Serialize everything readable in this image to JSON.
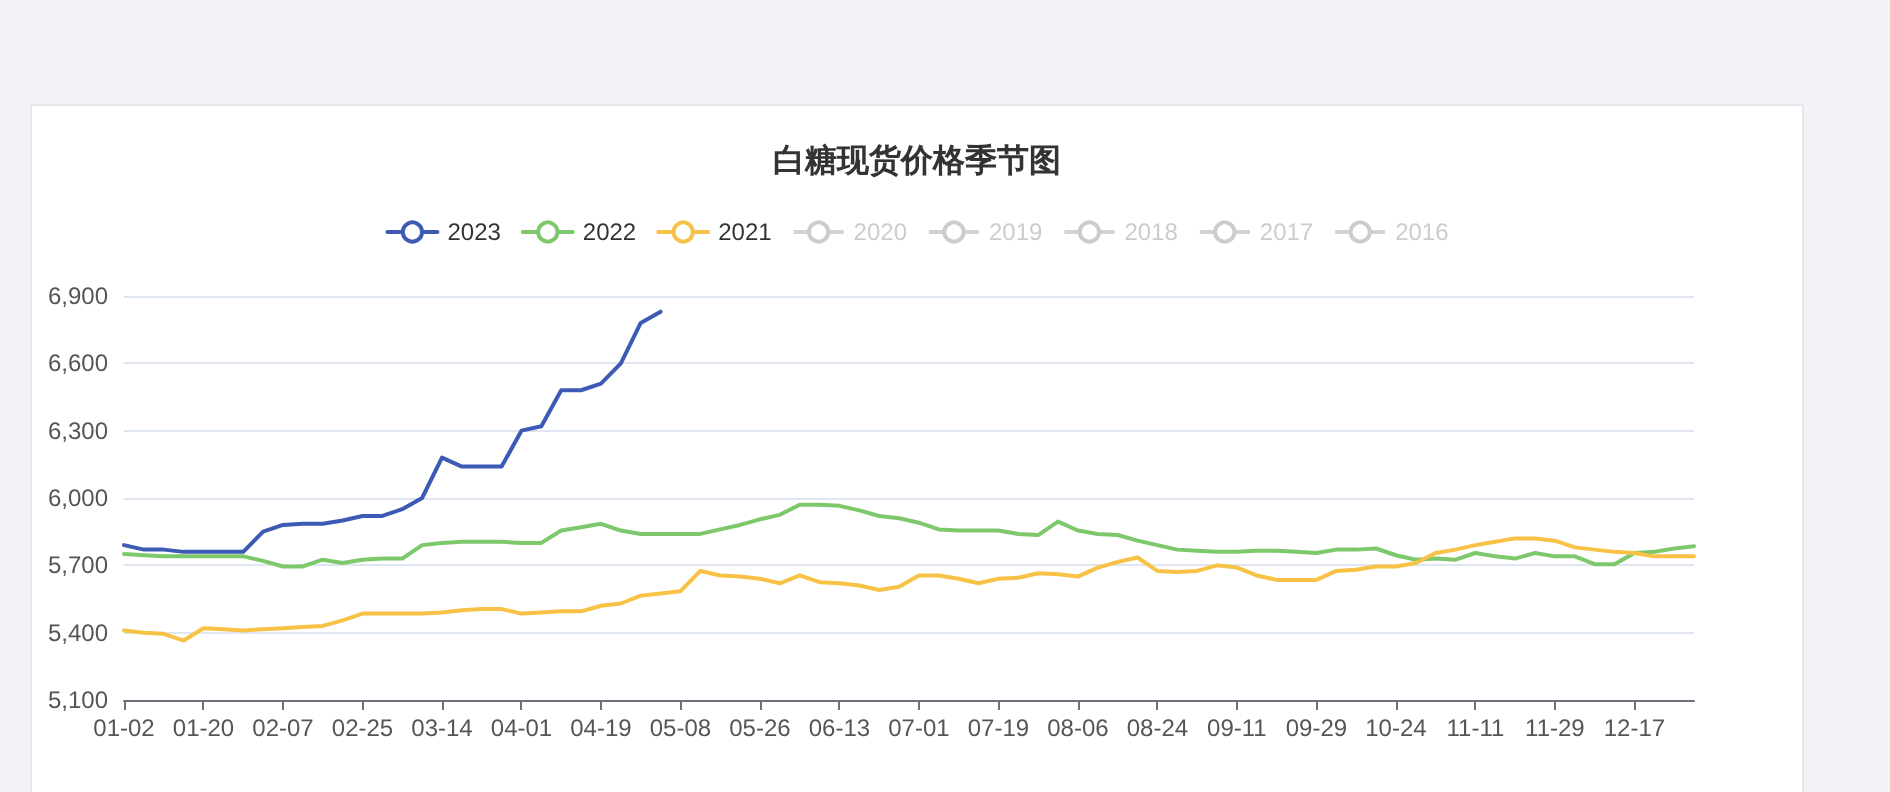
{
  "chart_data": {
    "type": "line",
    "title": "白糖现货价格季节图",
    "categories": [
      "01-02",
      null,
      null,
      null,
      "01-20",
      null,
      null,
      null,
      "02-07",
      null,
      null,
      null,
      "02-25",
      null,
      null,
      null,
      "03-14",
      null,
      null,
      null,
      "04-01",
      null,
      null,
      null,
      "04-19",
      null,
      null,
      null,
      "05-08",
      null,
      null,
      null,
      "05-26",
      null,
      null,
      null,
      "06-13",
      null,
      null,
      null,
      "07-01",
      null,
      null,
      null,
      "07-19",
      null,
      null,
      null,
      "08-06",
      null,
      null,
      null,
      "08-24",
      null,
      null,
      null,
      "09-11",
      null,
      null,
      null,
      "09-29",
      null,
      null,
      null,
      "10-24",
      null,
      null,
      null,
      "11-11",
      null,
      null,
      null,
      "11-29",
      null,
      null,
      null,
      "12-17",
      null,
      null,
      null
    ],
    "series": [
      {
        "name": "2023",
        "color": "#3d5bb5",
        "values": [
          5790,
          5770,
          5770,
          5760,
          5760,
          5760,
          5760,
          5850,
          5880,
          5885,
          5885,
          5900,
          5920,
          5920,
          5950,
          6000,
          6180,
          6140,
          6140,
          6140,
          6300,
          6320,
          6480,
          6480,
          6510,
          6600,
          6780,
          6830,
          null,
          null,
          null,
          null,
          null,
          null,
          null,
          null,
          null,
          null,
          null,
          null,
          null,
          null,
          null,
          null,
          null,
          null,
          null,
          null,
          null,
          null,
          null,
          null,
          null,
          null,
          null,
          null,
          null,
          null,
          null,
          null,
          null,
          null,
          null,
          null,
          null,
          null,
          null,
          null,
          null,
          null,
          null,
          null,
          null,
          null,
          null,
          null,
          null,
          null,
          null,
          null
        ]
      },
      {
        "name": "2022",
        "color": "#7cc86a",
        "values": [
          5750,
          5745,
          5740,
          5740,
          5740,
          5740,
          5740,
          5720,
          5695,
          5695,
          5725,
          5710,
          5725,
          5730,
          5730,
          5790,
          5800,
          5805,
          5805,
          5805,
          5800,
          5800,
          5855,
          5870,
          5885,
          5855,
          5840,
          5840,
          5840,
          5840,
          5860,
          5880,
          5905,
          5925,
          5970,
          5970,
          5965,
          5945,
          5920,
          5910,
          5890,
          5860,
          5855,
          5855,
          5855,
          5840,
          5835,
          5895,
          5855,
          5840,
          5835,
          5810,
          5790,
          5770,
          5765,
          5760,
          5760,
          5765,
          5765,
          5760,
          5755,
          5770,
          5770,
          5775,
          5745,
          5725,
          5730,
          5725,
          5755,
          5740,
          5730,
          5755,
          5740,
          5740,
          5705,
          5705,
          5755,
          5760,
          5775,
          5785
        ]
      },
      {
        "name": "2021",
        "color": "#f7c245",
        "values": [
          5410,
          5400,
          5395,
          5365,
          5420,
          5415,
          5410,
          5415,
          5420,
          5425,
          5430,
          5455,
          5485,
          5485,
          5485,
          5485,
          5490,
          5500,
          5505,
          5505,
          5485,
          5490,
          5495,
          5495,
          5520,
          5530,
          5565,
          5575,
          5585,
          5675,
          5655,
          5650,
          5640,
          5620,
          5655,
          5625,
          5620,
          5610,
          5590,
          5605,
          5655,
          5655,
          5640,
          5620,
          5640,
          5645,
          5665,
          5660,
          5650,
          5690,
          5715,
          5735,
          5675,
          5670,
          5675,
          5700,
          5690,
          5655,
          5635,
          5635,
          5635,
          5675,
          5680,
          5695,
          5695,
          5710,
          5755,
          5770,
          5790,
          5805,
          5820,
          5820,
          5810,
          5780,
          5770,
          5760,
          5755,
          5740,
          5740,
          5740
        ]
      },
      {
        "name": "2020",
        "values": [
          null,
          null,
          null,
          null,
          null,
          null,
          null,
          null,
          null,
          null,
          null,
          null,
          null,
          null,
          null,
          null,
          null,
          null,
          null,
          null,
          null,
          null,
          null,
          null,
          null,
          null,
          null,
          null,
          null,
          null,
          null,
          null,
          null,
          null,
          null,
          null,
          null,
          null,
          null,
          null,
          null,
          null,
          null,
          null,
          null,
          null,
          null,
          null,
          null,
          null,
          null,
          null,
          null,
          null,
          null,
          null,
          null,
          null,
          null,
          null,
          null,
          null,
          null,
          null,
          null,
          null,
          null,
          null,
          null,
          null,
          null,
          null,
          null,
          null,
          null,
          null,
          null,
          null,
          null,
          null
        ]
      },
      {
        "name": "2019",
        "values": [
          null,
          null,
          null,
          null,
          null,
          null,
          null,
          null,
          null,
          null,
          null,
          null,
          null,
          null,
          null,
          null,
          null,
          null,
          null,
          null,
          null,
          null,
          null,
          null,
          null,
          null,
          null,
          null,
          null,
          null,
          null,
          null,
          null,
          null,
          null,
          null,
          null,
          null,
          null,
          null,
          null,
          null,
          null,
          null,
          null,
          null,
          null,
          null,
          null,
          null,
          null,
          null,
          null,
          null,
          null,
          null,
          null,
          null,
          null,
          null,
          null,
          null,
          null,
          null,
          null,
          null,
          null,
          null,
          null,
          null,
          null,
          null,
          null,
          null,
          null,
          null,
          null,
          null,
          null,
          null
        ]
      },
      {
        "name": "2018",
        "values": [
          null,
          null,
          null,
          null,
          null,
          null,
          null,
          null,
          null,
          null,
          null,
          null,
          null,
          null,
          null,
          null,
          null,
          null,
          null,
          null,
          null,
          null,
          null,
          null,
          null,
          null,
          null,
          null,
          null,
          null,
          null,
          null,
          null,
          null,
          null,
          null,
          null,
          null,
          null,
          null,
          null,
          null,
          null,
          null,
          null,
          null,
          null,
          null,
          null,
          null,
          null,
          null,
          null,
          null,
          null,
          null,
          null,
          null,
          null,
          null,
          null,
          null,
          null,
          null,
          null,
          null,
          null,
          null,
          null,
          null,
          null,
          null,
          null,
          null,
          null,
          null,
          null,
          null,
          null,
          null
        ]
      },
      {
        "name": "2017",
        "values": [
          null,
          null,
          null,
          null,
          null,
          null,
          null,
          null,
          null,
          null,
          null,
          null,
          null,
          null,
          null,
          null,
          null,
          null,
          null,
          null,
          null,
          null,
          null,
          null,
          null,
          null,
          null,
          null,
          null,
          null,
          null,
          null,
          null,
          null,
          null,
          null,
          null,
          null,
          null,
          null,
          null,
          null,
          null,
          null,
          null,
          null,
          null,
          null,
          null,
          null,
          null,
          null,
          null,
          null,
          null,
          null,
          null,
          null,
          null,
          null,
          null,
          null,
          null,
          null,
          null,
          null,
          null,
          null,
          null,
          null,
          null,
          null,
          null,
          null,
          null,
          null,
          null,
          null,
          null,
          null
        ]
      },
      {
        "name": "2016",
        "values": [
          null,
          null,
          null,
          null,
          null,
          null,
          null,
          null,
          null,
          null,
          null,
          null,
          null,
          null,
          null,
          null,
          null,
          null,
          null,
          null,
          null,
          null,
          null,
          null,
          null,
          null,
          null,
          null,
          null,
          null,
          null,
          null,
          null,
          null,
          null,
          null,
          null,
          null,
          null,
          null,
          null,
          null,
          null,
          null,
          null,
          null,
          null,
          null,
          null,
          null,
          null,
          null,
          null,
          null,
          null,
          null,
          null,
          null,
          null,
          null,
          null,
          null,
          null,
          null,
          null,
          null,
          null,
          null,
          null,
          null,
          null,
          null,
          null,
          null,
          null,
          null,
          null,
          null,
          null,
          null
        ]
      }
    ],
    "ylim": [
      5100,
      6900
    ],
    "yticks": [
      {
        "value": 5100,
        "label": "5,100"
      },
      {
        "value": 5400,
        "label": "5,400"
      },
      {
        "value": 5700,
        "label": "5,700"
      },
      {
        "value": 6000,
        "label": "6,000"
      },
      {
        "value": 6300,
        "label": "6,300"
      },
      {
        "value": 6600,
        "label": "6,600"
      },
      {
        "value": 6900,
        "label": "6,900"
      }
    ],
    "grid": "y",
    "legend": "top",
    "marker": "none",
    "line_style": "solid"
  }
}
